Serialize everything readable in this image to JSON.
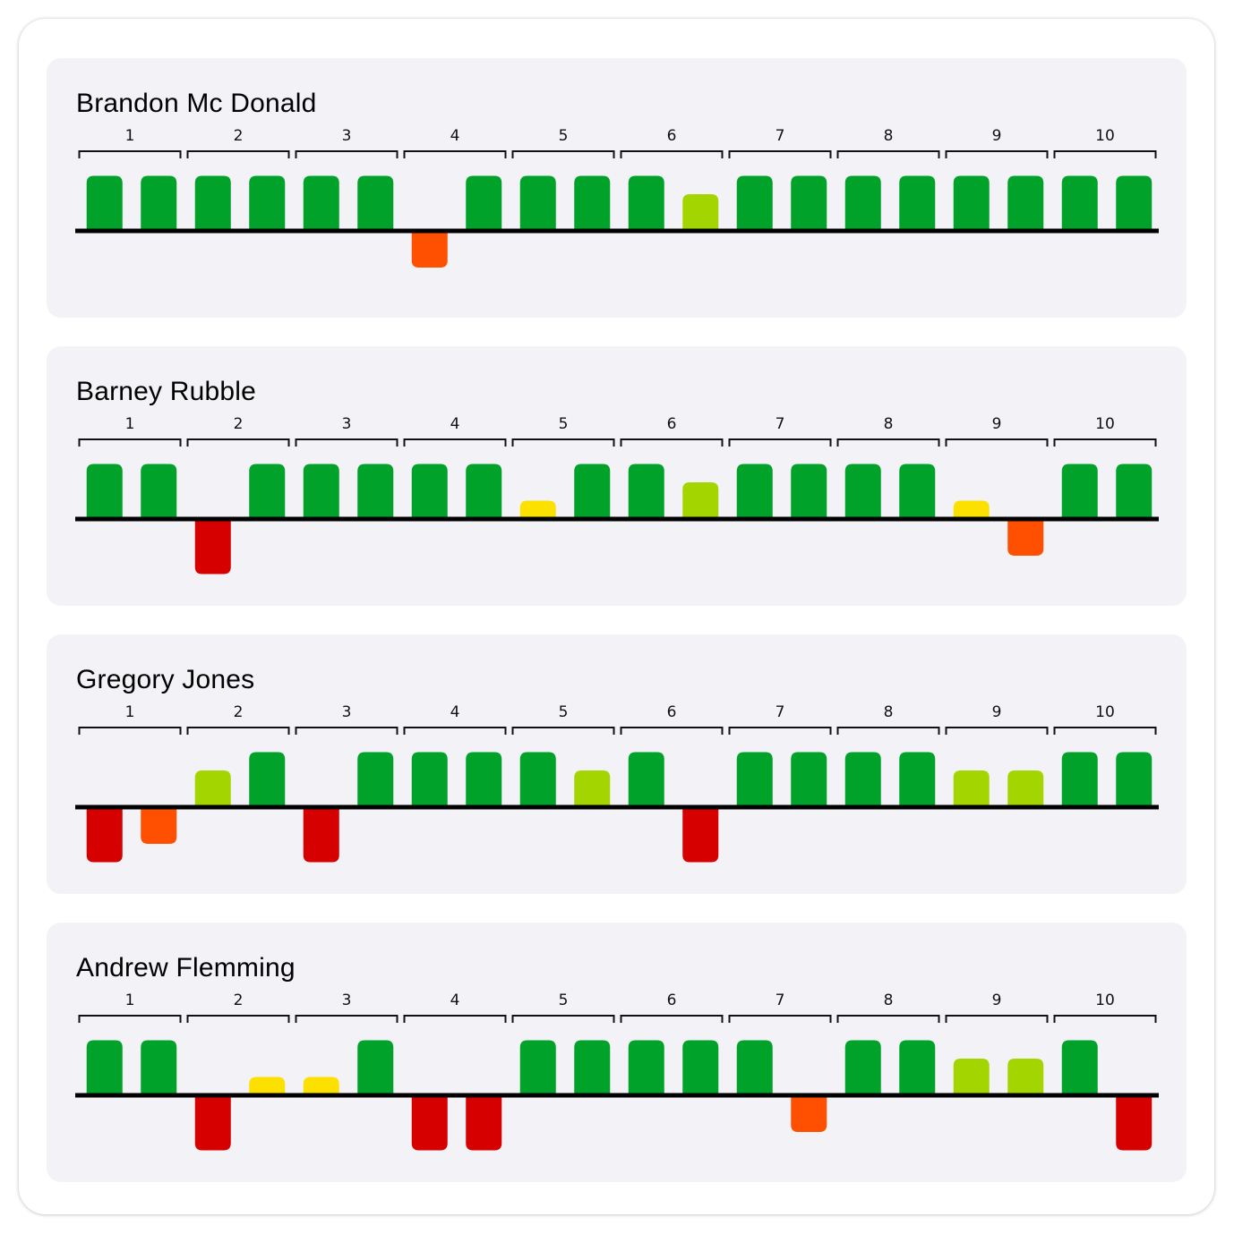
{
  "chart_data": [
    {
      "type": "bar",
      "title": "Brandon Mc Donald",
      "frames": [
        "1",
        "2",
        "3",
        "4",
        "5",
        "6",
        "7",
        "8",
        "9",
        "10"
      ],
      "values": [
        3,
        3,
        3,
        3,
        3,
        3,
        -2,
        3,
        3,
        3,
        3,
        2,
        3,
        3,
        3,
        3,
        3,
        3,
        3,
        3
      ]
    },
    {
      "type": "bar",
      "title": "Barney Rubble",
      "frames": [
        "1",
        "2",
        "3",
        "4",
        "5",
        "6",
        "7",
        "8",
        "9",
        "10"
      ],
      "values": [
        3,
        3,
        -3,
        3,
        3,
        3,
        3,
        3,
        1,
        3,
        3,
        2,
        3,
        3,
        3,
        3,
        1,
        -2,
        3,
        3
      ]
    },
    {
      "type": "bar",
      "title": "Gregory Jones",
      "frames": [
        "1",
        "2",
        "3",
        "4",
        "5",
        "6",
        "7",
        "8",
        "9",
        "10"
      ],
      "values": [
        -3,
        -2,
        2,
        3,
        -3,
        3,
        3,
        3,
        3,
        2,
        3,
        -3,
        3,
        3,
        3,
        3,
        2,
        2,
        3,
        3
      ]
    },
    {
      "type": "bar",
      "title": "Andrew Flemming",
      "frames": [
        "1",
        "2",
        "3",
        "4",
        "5",
        "6",
        "7",
        "8",
        "9",
        "10"
      ],
      "values": [
        3,
        3,
        -3,
        1,
        1,
        3,
        -3,
        -3,
        3,
        3,
        3,
        3,
        3,
        -2,
        3,
        3,
        2,
        2,
        3,
        -3
      ]
    }
  ],
  "colors": {
    "3": "#00a229",
    "2": "#a3d600",
    "1": "#fce100",
    "-2": "#fe5000",
    "-3": "#d60000",
    "panel": "#f2f2f7",
    "baseline": "#000000"
  }
}
